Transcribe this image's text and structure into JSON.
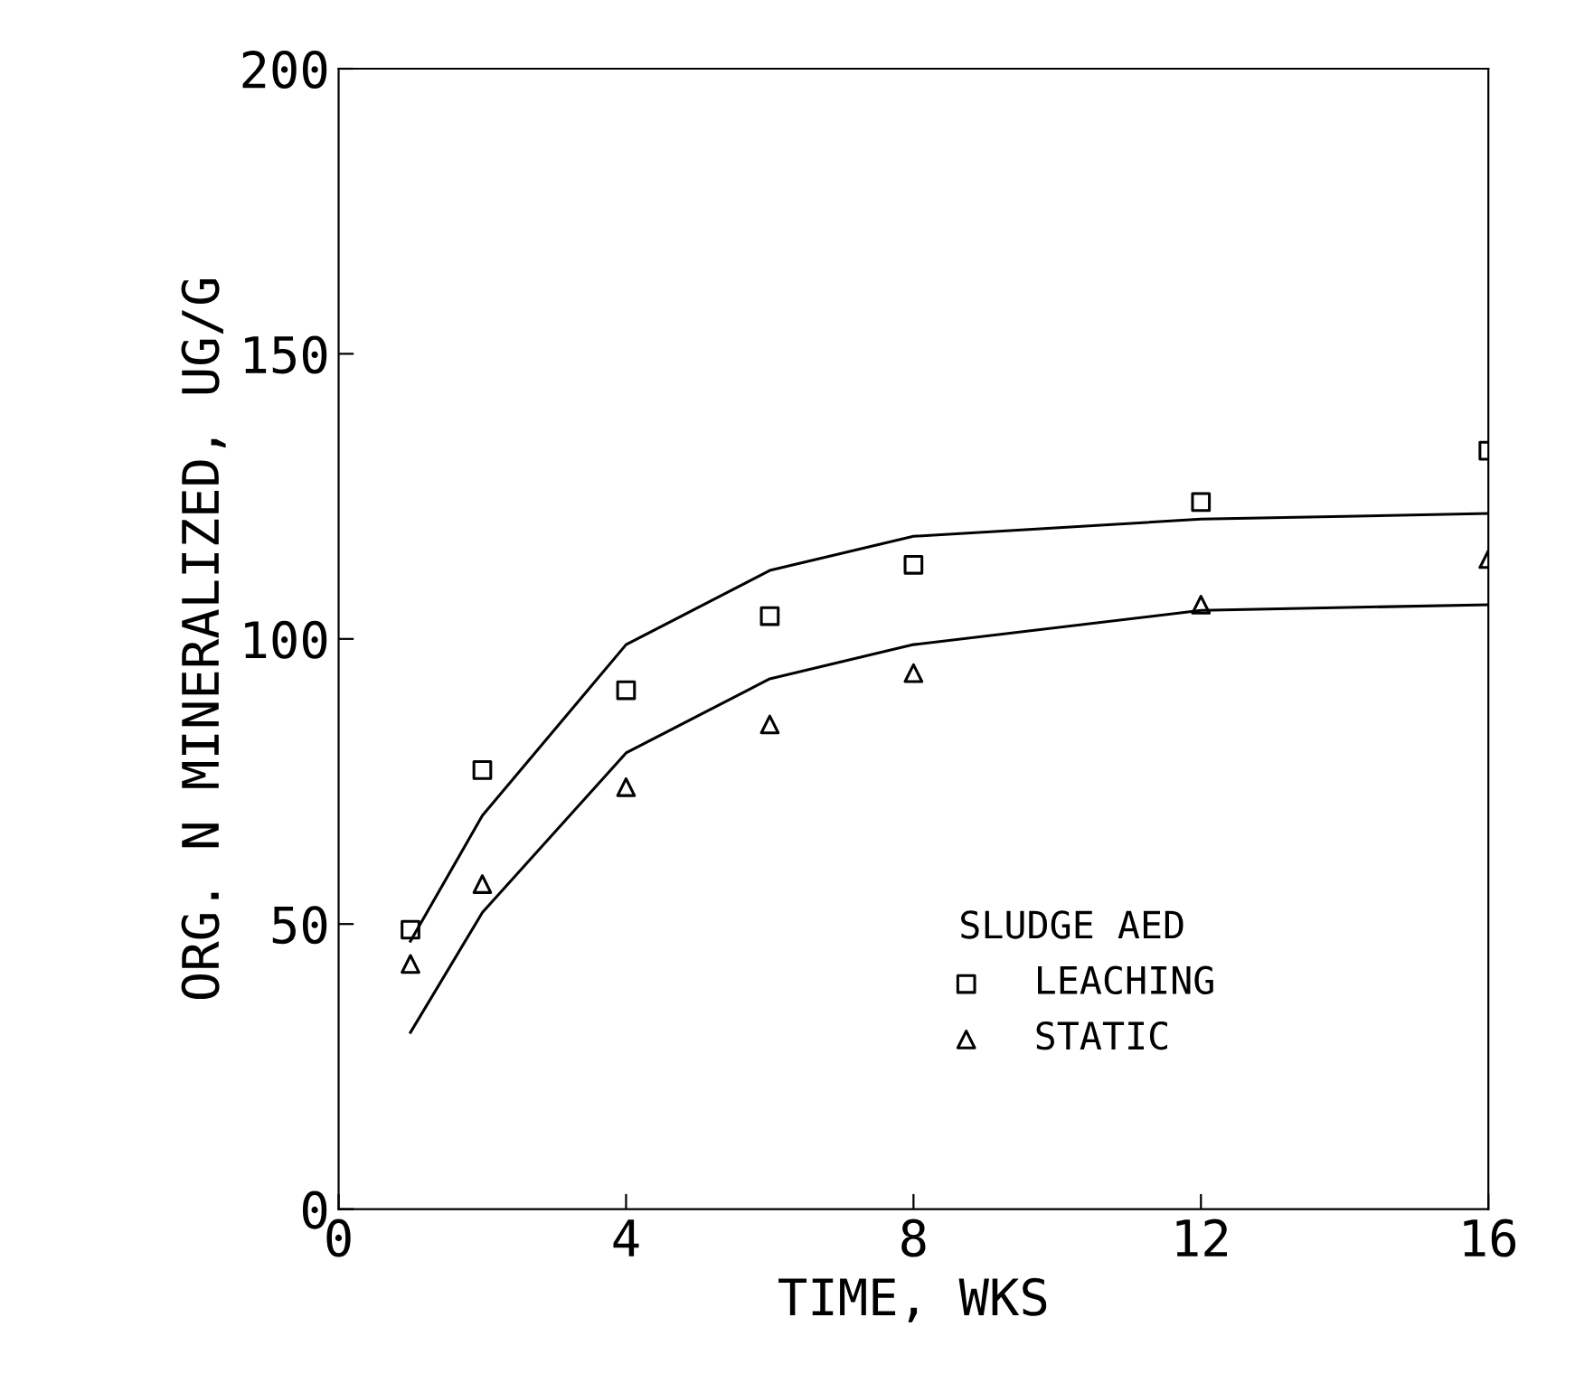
{
  "chart_data": {
    "type": "scatter",
    "xlabel": "TIME, WKS",
    "ylabel": "ORG. N MINERALIZED, UG/G",
    "legend_title": "SLUDGE AED",
    "legend": "bottom right",
    "grid": false,
    "xlim": [
      0,
      16
    ],
    "xticks": [
      0,
      4,
      8,
      12,
      16
    ],
    "ylim": [
      0,
      200
    ],
    "yticks": [
      0,
      50,
      100,
      150,
      200
    ],
    "series": [
      {
        "name": "LEACHING",
        "marker": "square",
        "color": "#000000",
        "x": [
          1,
          2,
          4,
          6,
          8,
          12,
          16
        ],
        "values": [
          49,
          77,
          91,
          104,
          113,
          124,
          133
        ]
      },
      {
        "name": "STATIC",
        "marker": "triangle",
        "color": "#000000",
        "x": [
          1,
          2,
          4,
          6,
          8,
          12,
          16
        ],
        "values": [
          43,
          57,
          74,
          85,
          94,
          106,
          114
        ]
      },
      {
        "type": "line",
        "marker": "none",
        "color": "#000000",
        "x": [
          1,
          2,
          4,
          6,
          8,
          12,
          16
        ],
        "values": [
          47,
          69,
          99,
          112,
          118,
          121,
          122
        ]
      },
      {
        "type": "line",
        "marker": "none",
        "color": "#000000",
        "x": [
          1,
          2,
          4,
          6,
          8,
          12,
          16
        ],
        "values": [
          31,
          52,
          80,
          93,
          99,
          105,
          106
        ]
      }
    ]
  }
}
